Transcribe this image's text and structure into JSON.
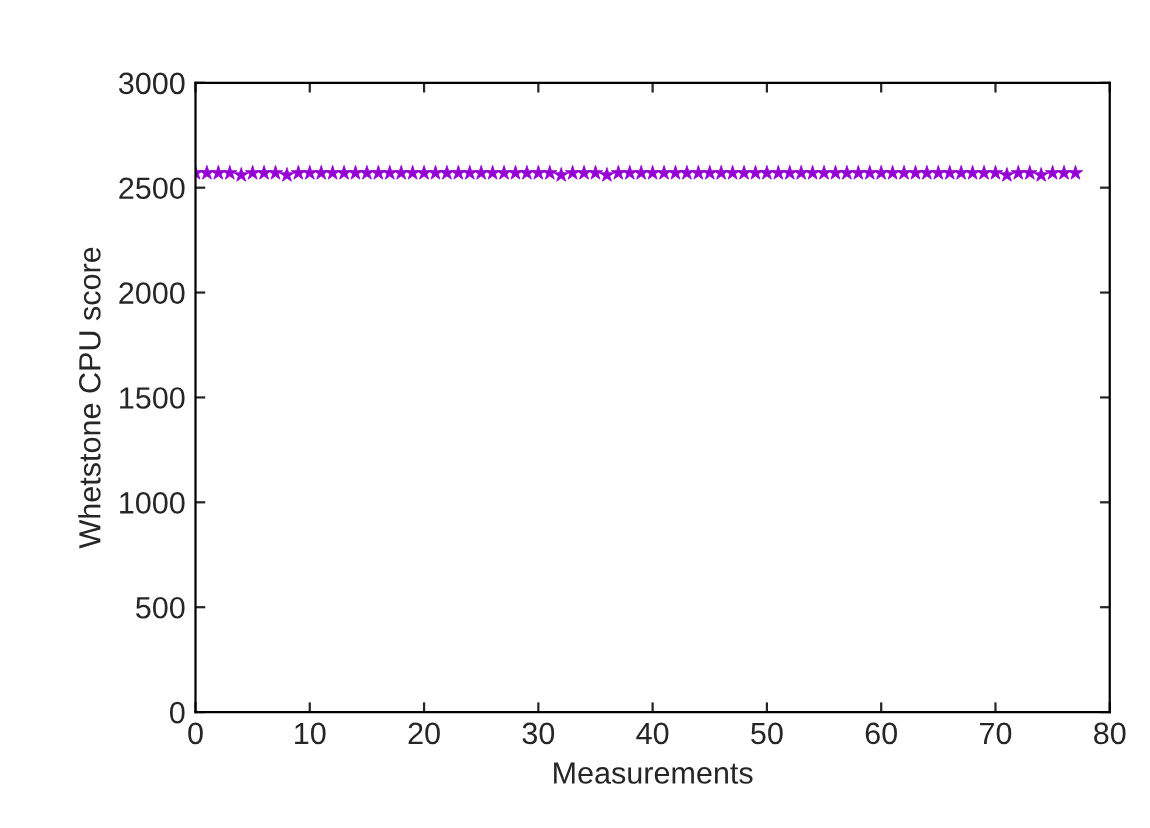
{
  "chart_data": {
    "type": "scatter",
    "xlabel": "Measurements",
    "ylabel": "Whetstone CPU score",
    "x": [
      0,
      1,
      2,
      3,
      4,
      5,
      6,
      7,
      8,
      9,
      10,
      11,
      12,
      13,
      14,
      15,
      16,
      17,
      18,
      19,
      20,
      21,
      22,
      23,
      24,
      25,
      26,
      27,
      28,
      29,
      30,
      31,
      32,
      33,
      34,
      35,
      36,
      37,
      38,
      39,
      40,
      41,
      42,
      43,
      44,
      45,
      46,
      47,
      48,
      49,
      50,
      51,
      52,
      53,
      54,
      55,
      56,
      57,
      58,
      59,
      60,
      61,
      62,
      63,
      64,
      65,
      66,
      67,
      68,
      69,
      70,
      71,
      72,
      73,
      74,
      75,
      76,
      77
    ],
    "series": [
      {
        "color": "#9400d3",
        "values": [
          2570,
          2570,
          2570,
          2570,
          2560,
          2570,
          2570,
          2570,
          2560,
          2570,
          2570,
          2570,
          2570,
          2570,
          2570,
          2570,
          2570,
          2570,
          2570,
          2570,
          2570,
          2570,
          2570,
          2570,
          2570,
          2570,
          2570,
          2570,
          2570,
          2570,
          2570,
          2570,
          2560,
          2570,
          2570,
          2570,
          2560,
          2570,
          2570,
          2570,
          2570,
          2570,
          2570,
          2570,
          2570,
          2570,
          2570,
          2570,
          2570,
          2570,
          2570,
          2570,
          2570,
          2570,
          2570,
          2570,
          2570,
          2570,
          2570,
          2570,
          2570,
          2570,
          2570,
          2570,
          2570,
          2570,
          2570,
          2570,
          2570,
          2570,
          2570,
          2560,
          2570,
          2570,
          2560,
          2570,
          2570,
          2570
        ]
      }
    ],
    "xlim": [
      0,
      80
    ],
    "xticks": [
      0,
      10,
      20,
      30,
      40,
      50,
      60,
      70,
      80
    ],
    "ylim": [
      0,
      3000
    ],
    "yticks": [
      0,
      500,
      1000,
      1500,
      2000,
      2500,
      3000
    ],
    "marker": "star",
    "grid": false,
    "legend": false
  }
}
